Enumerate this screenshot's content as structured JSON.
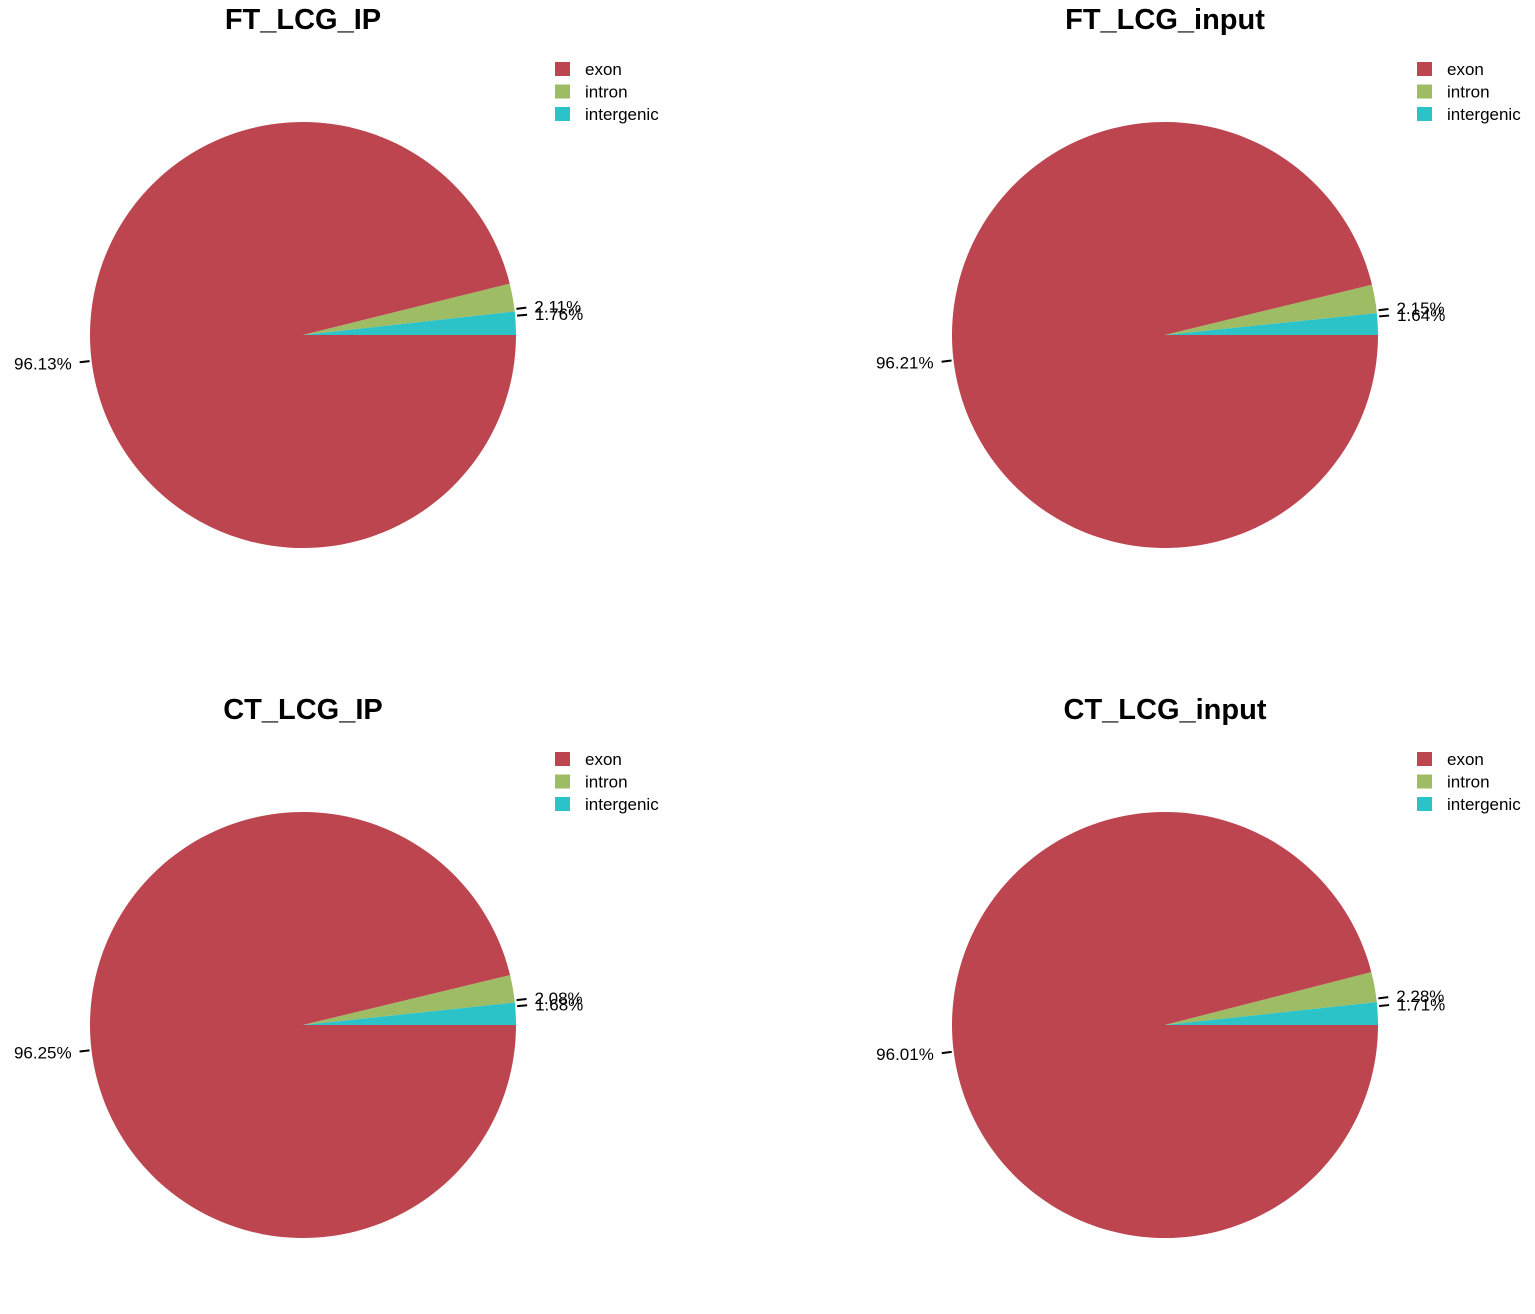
{
  "chart_data": [
    {
      "type": "pie",
      "title": "FT_LCG_IP",
      "categories": [
        "exon",
        "intron",
        "intergenic"
      ],
      "values": [
        96.13,
        2.11,
        1.76
      ],
      "labels": [
        "96.13%",
        "2.11%",
        "1.76%"
      ],
      "colors": [
        "#BC4550",
        "#9DBC63",
        "#2CC3C8"
      ],
      "legend": "top-right"
    },
    {
      "type": "pie",
      "title": "FT_LCG_input",
      "categories": [
        "exon",
        "intron",
        "intergenic"
      ],
      "values": [
        96.21,
        2.15,
        1.64
      ],
      "labels": [
        "96.21%",
        "2.15%",
        "1.64%"
      ],
      "colors": [
        "#BC4550",
        "#9DBC63",
        "#2CC3C8"
      ],
      "legend": "top-right"
    },
    {
      "type": "pie",
      "title": "CT_LCG_IP",
      "categories": [
        "exon",
        "intron",
        "intergenic"
      ],
      "values": [
        96.25,
        2.08,
        1.68
      ],
      "labels": [
        "96.25%",
        "2.08%",
        "1.68%"
      ],
      "colors": [
        "#BC4550",
        "#9DBC63",
        "#2CC3C8"
      ],
      "legend": "top-right"
    },
    {
      "type": "pie",
      "title": "CT_LCG_input",
      "categories": [
        "exon",
        "intron",
        "intergenic"
      ],
      "values": [
        96.01,
        2.28,
        1.71
      ],
      "labels": [
        "96.01%",
        "2.28%",
        "1.71%"
      ],
      "colors": [
        "#BC4550",
        "#9DBC63",
        "#2CC3C8"
      ],
      "legend": "top-right"
    }
  ]
}
